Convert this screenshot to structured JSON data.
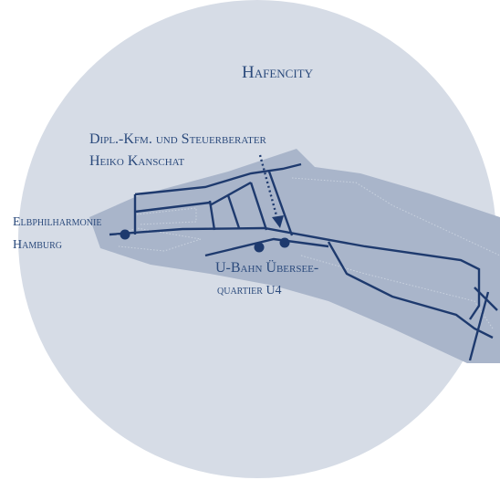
{
  "map": {
    "district": "Hafencity",
    "office": {
      "lines": [
        "Dipl.-Kfm. und Steuerberater",
        "Heiko Kanschat"
      ]
    },
    "elbphilharmonie": {
      "lines": [
        "Elbphilharmonie",
        "Hamburg"
      ]
    },
    "ubahn": {
      "lines": [
        "U-Bahn Übersee-",
        "quartier U4"
      ]
    }
  }
}
